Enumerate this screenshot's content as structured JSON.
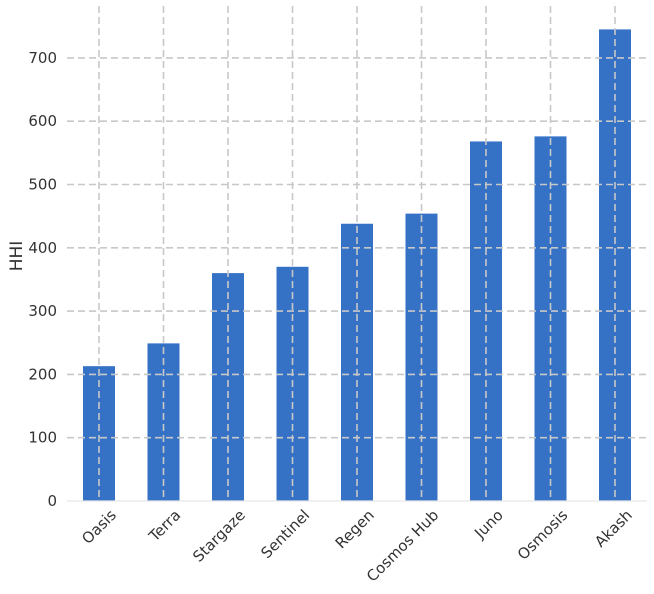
{
  "chart_data": {
    "type": "bar",
    "title": "",
    "xlabel": "",
    "ylabel": "HHI",
    "categories": [
      "Oasis",
      "Terra",
      "Stargaze",
      "Sentinel",
      "Regen",
      "Cosmos Hub",
      "Juno",
      "Osmosis",
      "Akash"
    ],
    "values": [
      213,
      249,
      360,
      370,
      438,
      454,
      568,
      576,
      745
    ],
    "ylim": [
      0,
      780
    ],
    "yticks": [
      0,
      100,
      200,
      300,
      400,
      500,
      600,
      700
    ],
    "grid": true,
    "bar_color": "#3572c6",
    "grid_color": "#c8c8c8"
  }
}
